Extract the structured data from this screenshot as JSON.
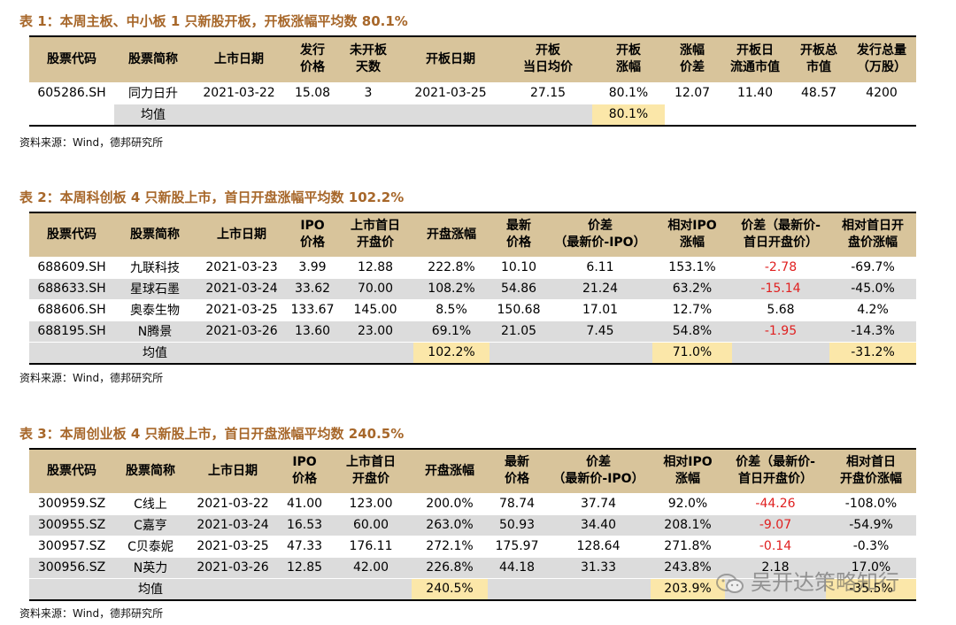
{
  "table1": {
    "title": "表 1：本周主板、中小板 1 只新股开板，开板涨幅平均数 80.1%",
    "headers": [
      [
        "股票代码"
      ],
      [
        "股票简称"
      ],
      [
        "上市日期"
      ],
      [
        "发行",
        "价格"
      ],
      [
        "未开板",
        "天数"
      ],
      [
        "开板日期"
      ],
      [
        "开板",
        "当日均价"
      ],
      [
        "开板",
        "涨幅"
      ],
      [
        "涨幅",
        "价差"
      ],
      [
        "开板日",
        "流通市值"
      ],
      [
        "开板总",
        "市值"
      ],
      [
        "发行总量",
        "（万股）"
      ]
    ],
    "rows": [
      [
        "605286.SH",
        "同力日升",
        "2021-03-22",
        "15.08",
        "3",
        "2021-03-25",
        "27.15",
        "80.1%",
        "12.07",
        "11.40",
        "48.57",
        "4200"
      ]
    ],
    "avg_label": "均值",
    "avg_value": "80.1%",
    "source": "资料来源：Wind，德邦研究所"
  },
  "table2": {
    "title": "表 2：本周科创板 4 只新股上市，首日开盘涨幅平均数 102.2%",
    "headers": [
      [
        "股票代码"
      ],
      [
        "股票简称"
      ],
      [
        "上市日期"
      ],
      [
        "IPO",
        "价格"
      ],
      [
        "上市首日",
        "开盘价"
      ],
      [
        "开盘涨幅"
      ],
      [
        "最新",
        "价格"
      ],
      [
        "价差",
        "（最新价-IPO）"
      ],
      [
        "相对IPO",
        "涨幅"
      ],
      [
        "价差（最新价-",
        "首日开盘价）"
      ],
      [
        "相对首日开",
        "盘价涨幅"
      ]
    ],
    "rows": [
      [
        "688609.SH",
        "九联科技",
        "2021-03-23",
        "3.99",
        "12.88",
        "222.8%",
        "10.10",
        "6.11",
        "153.1%",
        "-2.78",
        "-69.7%"
      ],
      [
        "688633.SH",
        "星球石墨",
        "2021-03-24",
        "33.62",
        "70.00",
        "108.2%",
        "54.86",
        "21.24",
        "63.2%",
        "-15.14",
        "-45.0%"
      ],
      [
        "688606.SH",
        "奥泰生物",
        "2021-03-25",
        "133.67",
        "145.00",
        "8.5%",
        "150.68",
        "17.01",
        "12.7%",
        "5.68",
        "4.2%"
      ],
      [
        "688195.SH",
        "N腾景",
        "2021-03-26",
        "13.60",
        "23.00",
        "69.1%",
        "21.05",
        "7.45",
        "54.8%",
        "-1.95",
        "-14.3%"
      ]
    ],
    "avg_label": "均值",
    "avg_open": "102.2%",
    "avg_ipo": "71.0%",
    "avg_first": "-31.2%",
    "source": "资料来源：Wind，德邦研究所"
  },
  "table3": {
    "title": "表 3：本周创业板 4 只新股上市，首日开盘涨幅平均数 240.5%",
    "headers": [
      [
        "股票代码"
      ],
      [
        "股票简称"
      ],
      [
        "上市日期"
      ],
      [
        "IPO",
        "价格"
      ],
      [
        "上市首日",
        "开盘价"
      ],
      [
        "开盘涨幅"
      ],
      [
        "最新",
        "价格"
      ],
      [
        "价差",
        "（最新价-IPO）"
      ],
      [
        "相对IPO",
        "涨幅"
      ],
      [
        "价差（最新价-",
        "首日开盘价）"
      ],
      [
        "相对首日",
        "开盘价涨幅"
      ]
    ],
    "rows": [
      [
        "300959.SZ",
        "C线上",
        "2021-03-22",
        "41.00",
        "123.00",
        "200.0%",
        "78.74",
        "37.74",
        "92.0%",
        "-44.26",
        "-108.0%"
      ],
      [
        "300955.SZ",
        "C嘉亨",
        "2021-03-24",
        "16.53",
        "60.00",
        "263.0%",
        "50.93",
        "34.40",
        "208.1%",
        "-9.07",
        "-54.9%"
      ],
      [
        "300957.SZ",
        "C贝泰妮",
        "2021-03-25",
        "47.33",
        "176.11",
        "272.1%",
        "175.97",
        "128.64",
        "271.8%",
        "-0.14",
        "-0.3%"
      ],
      [
        "300956.SZ",
        "N英力",
        "2021-03-26",
        "12.85",
        "42.00",
        "226.8%",
        "44.18",
        "31.33",
        "243.8%",
        "2.18",
        "17.0%"
      ]
    ],
    "avg_label": "均值",
    "avg_open": "240.5%",
    "avg_ipo": "203.9%",
    "avg_first": "-35.5%",
    "source": "资料来源：Wind，德邦研究所"
  },
  "watermark": {
    "text": "吴开达策略知行",
    "icon": "wechat-icon"
  }
}
